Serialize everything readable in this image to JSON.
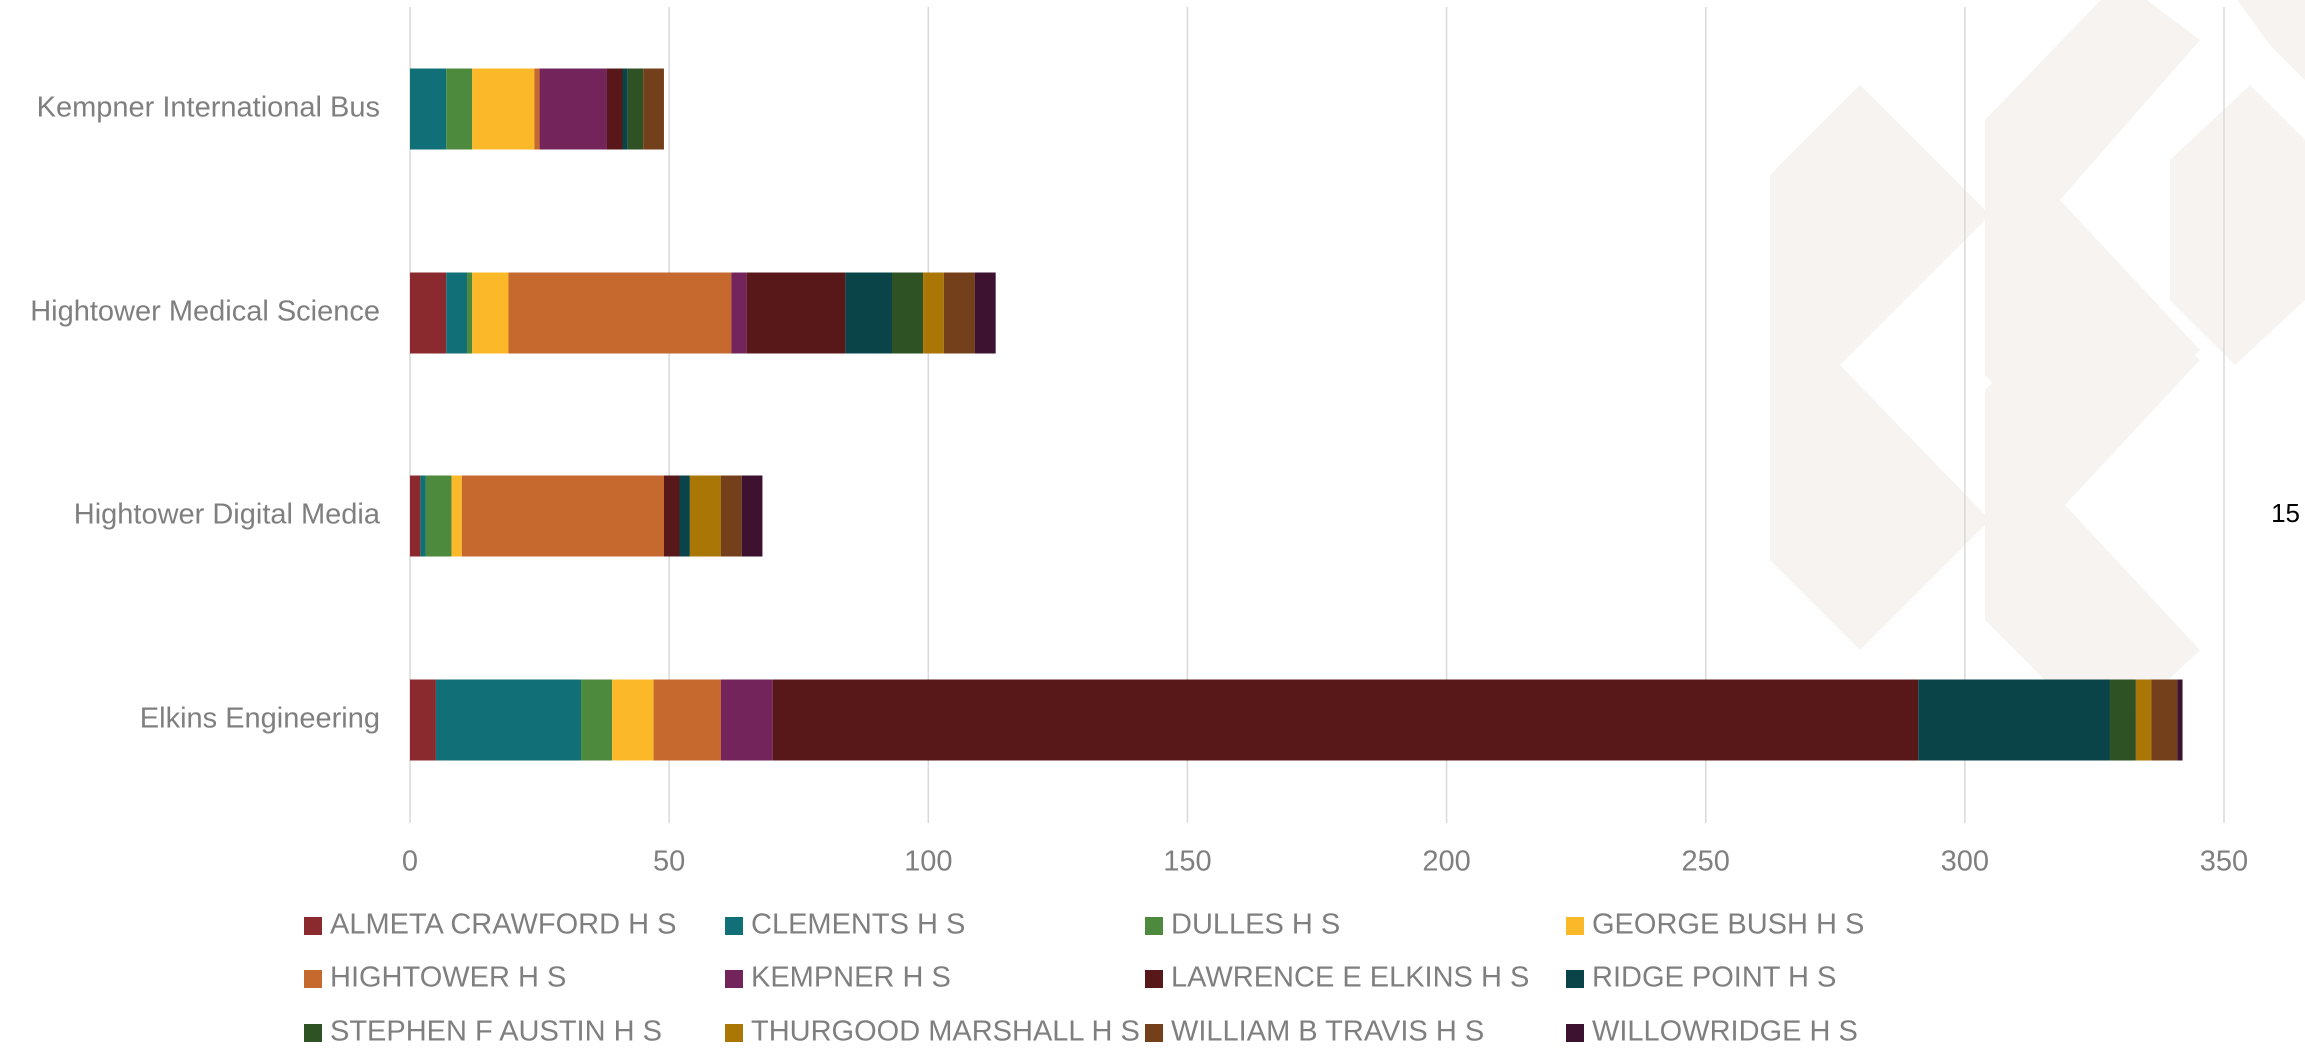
{
  "chart_data": {
    "type": "bar",
    "orientation": "horizontal",
    "stacked": true,
    "categories": [
      "Kempner International Bus",
      "Hightower Medical Science",
      "Hightower Digital Media",
      "Elkins Engineering"
    ],
    "series": [
      {
        "name": "ALMETA CRAWFORD H S",
        "color": "#8b2a2e",
        "values": [
          0,
          7,
          2,
          5
        ]
      },
      {
        "name": "CLEMENTS H S",
        "color": "#117077",
        "values": [
          7,
          4,
          1,
          28
        ]
      },
      {
        "name": "DULLES H S",
        "color": "#4e8a3e",
        "values": [
          5,
          1,
          5,
          6
        ]
      },
      {
        "name": "GEORGE BUSH H S",
        "color": "#fbb829",
        "values": [
          12,
          7,
          2,
          8
        ]
      },
      {
        "name": "HIGHTOWER H S",
        "color": "#c5692f",
        "values": [
          1,
          43,
          39,
          13
        ]
      },
      {
        "name": "KEMPNER H S",
        "color": "#73245a",
        "values": [
          13,
          3,
          0,
          10
        ]
      },
      {
        "name": "LAWRENCE E ELKINS H S",
        "color": "#58181a",
        "values": [
          3,
          19,
          3,
          221
        ]
      },
      {
        "name": "RIDGE POINT H S",
        "color": "#0b4448",
        "values": [
          1,
          9,
          2,
          37
        ]
      },
      {
        "name": "STEPHEN F AUSTIN H S",
        "color": "#2f5224",
        "values": [
          3,
          6,
          0,
          5
        ]
      },
      {
        "name": "THURGOOD MARSHALL H S",
        "color": "#aa7606",
        "values": [
          0,
          4,
          6,
          3
        ]
      },
      {
        "name": "WILLIAM B TRAVIS H S",
        "color": "#74401b",
        "values": [
          4,
          6,
          4,
          5
        ]
      },
      {
        "name": "WILLOWRIDGE H S",
        "color": "#3d1130",
        "values": [
          0,
          4,
          4,
          1
        ]
      }
    ],
    "xlim": [
      0,
      350
    ],
    "xticks": [
      0,
      50,
      100,
      150,
      200,
      250,
      300,
      350
    ],
    "grid": true,
    "legend": "bottom",
    "annotation": "15"
  }
}
